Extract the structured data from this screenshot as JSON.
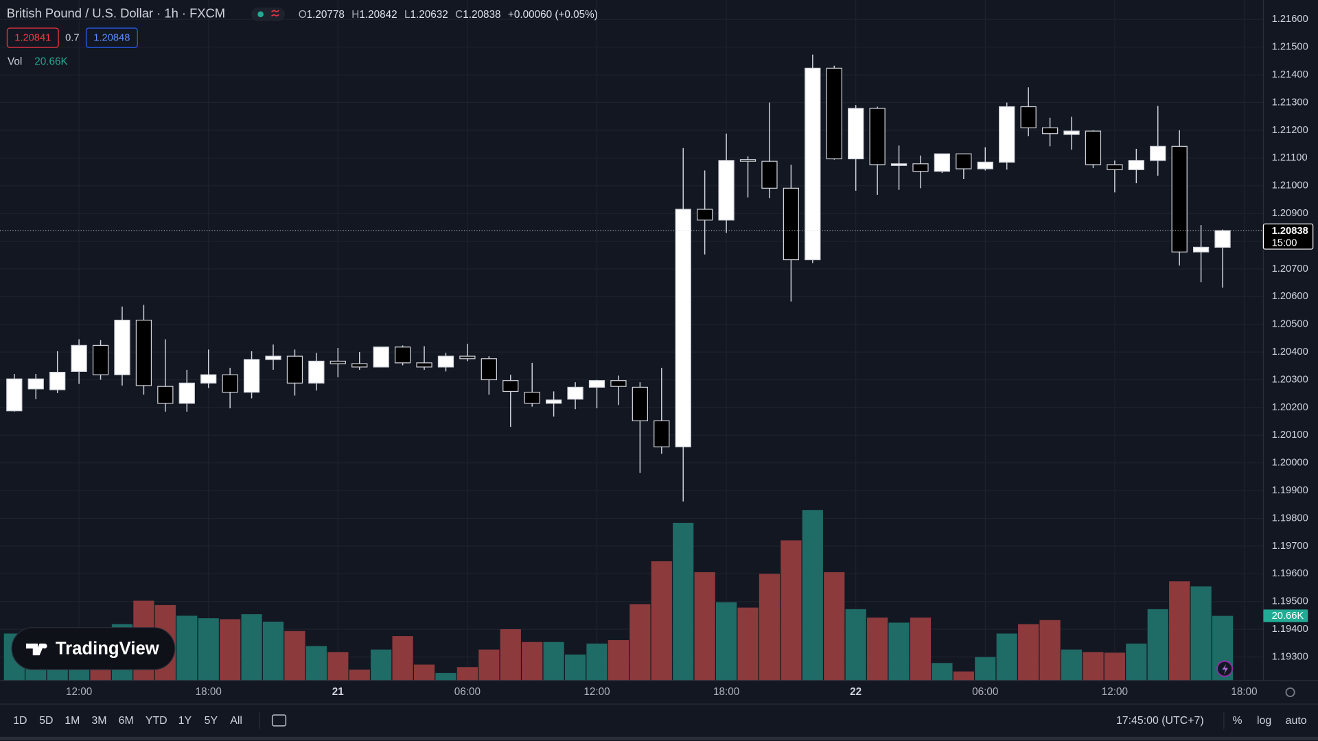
{
  "header": {
    "title": "British Pound / U.S. Dollar · 1h · FXCM",
    "ohlc_letters": [
      "O",
      "H",
      "L",
      "C"
    ],
    "change": "+0.00060 (+0.05%)",
    "sell": "1.20841",
    "spread": "0.7",
    "buy": "1.20848"
  },
  "logo": "TradingView",
  "toolbar": {
    "ranges": [
      "1D",
      "5D",
      "1M",
      "3M",
      "6M",
      "YTD",
      "1Y",
      "5Y",
      "All"
    ],
    "time": "17:45:00 (UTC+7)",
    "options": [
      "%",
      "log",
      "auto"
    ]
  },
  "chart_data": {
    "type": "candlestick",
    "categories": [
      null,
      null,
      null,
      "12:00",
      null,
      null,
      null,
      null,
      null,
      "18:00",
      null,
      null,
      null,
      null,
      null,
      "21",
      null,
      null,
      null,
      null,
      null,
      "06:00",
      null,
      null,
      null,
      null,
      null,
      "12:00",
      null,
      null,
      null,
      null,
      null,
      "18:00",
      null,
      null,
      null,
      null,
      null,
      "22",
      null,
      null,
      null,
      null,
      null,
      "06:00",
      null,
      null,
      null,
      null,
      null,
      "12:00",
      null,
      null,
      null,
      null,
      null,
      "18:00"
    ],
    "open": [
      1.20188,
      1.20267,
      1.20264,
      1.2033,
      1.20424,
      1.20318,
      1.20515,
      1.20276,
      1.20215,
      1.20288,
      1.20318,
      1.20255,
      1.20373,
      1.20385,
      1.20288,
      1.20367,
      1.20358,
      1.20346,
      1.20418,
      1.20361,
      1.20346,
      1.20385,
      1.20376,
      1.20297,
      1.20255,
      1.20215,
      1.2023,
      1.20273,
      1.20297,
      1.20273,
      1.20152,
      1.20058,
      1.20915,
      1.20876,
      1.21094,
      1.21088,
      1.20991,
      1.20733,
      1.21424,
      1.21097,
      1.21279,
      1.21073,
      1.21079,
      1.21052,
      1.21115,
      1.21061,
      1.21085,
      1.21285,
      1.21209,
      1.21185,
      1.21197,
      1.21076,
      1.21058,
      1.21091,
      1.21142,
      1.20761,
      1.20778,
      null
    ],
    "high": [
      1.20321,
      1.20321,
      1.20403,
      1.20446,
      1.20443,
      1.20564,
      1.2057,
      1.20446,
      1.20336,
      1.20409,
      1.20343,
      1.20403,
      1.20427,
      1.20409,
      1.20397,
      1.20415,
      1.204,
      1.20418,
      1.20424,
      1.20421,
      1.20397,
      1.2043,
      1.20385,
      1.20318,
      1.20361,
      1.20258,
      1.20291,
      1.203,
      1.20315,
      1.20291,
      1.20343,
      1.21136,
      1.21055,
      1.21188,
      1.21106,
      1.213,
      1.21076,
      1.21473,
      1.21433,
      1.21291,
      1.21285,
      1.21145,
      1.21109,
      1.21115,
      1.21115,
      1.21139,
      1.213,
      1.21355,
      1.21245,
      1.21249,
      1.212,
      1.21091,
      1.21133,
      1.21288,
      1.212,
      1.20858,
      1.20842,
      null
    ],
    "low": [
      1.20185,
      1.2023,
      1.20252,
      1.20285,
      1.203,
      1.20279,
      1.20246,
      1.20185,
      1.20185,
      1.2027,
      1.20197,
      1.20233,
      1.20336,
      1.20243,
      1.20261,
      1.20309,
      1.20336,
      1.20346,
      1.20352,
      1.20336,
      1.2033,
      1.20367,
      1.20246,
      1.2013,
      1.20203,
      1.20167,
      1.20194,
      1.20197,
      1.20209,
      1.19964,
      1.20033,
      1.19861,
      1.20752,
      1.2083,
      1.20958,
      1.20955,
      1.20582,
      1.20721,
      1.21094,
      1.20982,
      1.20967,
      1.20985,
      1.20991,
      1.21046,
      1.21024,
      1.21055,
      1.21058,
      1.21179,
      1.21142,
      1.2113,
      1.21064,
      1.20976,
      1.21009,
      1.21036,
      1.20712,
      1.20652,
      1.20632,
      null
    ],
    "close": [
      1.20303,
      1.20303,
      1.20327,
      1.20424,
      1.20318,
      1.20515,
      1.20279,
      1.20215,
      1.20288,
      1.20318,
      1.20255,
      1.20373,
      1.20385,
      1.20288,
      1.20367,
      1.20358,
      1.20346,
      1.20418,
      1.20361,
      1.20346,
      1.20385,
      1.20376,
      1.203,
      1.20258,
      1.20215,
      1.20227,
      1.20273,
      1.20297,
      1.20276,
      1.20152,
      1.20058,
      1.20915,
      1.20876,
      1.21091,
      1.21088,
      1.20991,
      1.20733,
      1.21424,
      1.21097,
      1.21279,
      1.21076,
      1.21079,
      1.21052,
      1.21115,
      1.21061,
      1.21085,
      1.21285,
      1.21209,
      1.21188,
      1.21197,
      1.21076,
      1.21058,
      1.21091,
      1.21142,
      1.20761,
      1.20778,
      1.20838,
      null
    ],
    "up_color": "#ffffff",
    "down_color": "#000000",
    "wick_color": "#d1d4dc",
    "countdown": "15:00",
    "volume": {
      "name": "Vol",
      "last_label": "20.66K",
      "up_color": "#1f6b66",
      "down_color": "#8c3a3c",
      "label_color": "#22ab94",
      "values": [
        15.0,
        14.0,
        13.0,
        16.5,
        14.5,
        18.0,
        25.5,
        24.1,
        20.7,
        19.9,
        19.6,
        21.2,
        18.8,
        15.8,
        11.0,
        9.1,
        3.5,
        9.9,
        14.2,
        5.1,
        2.4,
        4.3,
        9.9,
        16.4,
        12.3,
        12.3,
        8.3,
        11.8,
        12.9,
        24.4,
        38.1,
        50.4,
        34.6,
        25.0,
        23.3,
        34.1,
        44.8,
        54.5,
        34.6,
        22.8,
        20.1,
        18.5,
        20.1,
        5.6,
        2.9,
        7.5,
        15.0,
        18.0,
        19.3,
        9.9,
        9.1,
        8.9,
        11.8,
        22.8,
        31.7,
        30.1,
        20.66,
        null
      ]
    },
    "ylim": [
      1.19215,
      1.2167
    ],
    "yticks": [
      {
        "value": 1.216,
        "label": "1.21600"
      },
      {
        "value": 1.215,
        "label": "1.21500"
      },
      {
        "value": 1.214,
        "label": "1.21400"
      },
      {
        "value": 1.213,
        "label": "1.21300"
      },
      {
        "value": 1.212,
        "label": "1.21200"
      },
      {
        "value": 1.211,
        "label": "1.21100"
      },
      {
        "value": 1.21,
        "label": "1.21000"
      },
      {
        "value": 1.209,
        "label": "1.20900"
      },
      {
        "value": 1.208,
        "label": "1.20800"
      },
      {
        "value": 1.207,
        "label": "1.20700"
      },
      {
        "value": 1.206,
        "label": "1.20600"
      },
      {
        "value": 1.205,
        "label": "1.20500"
      },
      {
        "value": 1.204,
        "label": "1.20400"
      },
      {
        "value": 1.203,
        "label": "1.20300"
      },
      {
        "value": 1.202,
        "label": "1.20200"
      },
      {
        "value": 1.201,
        "label": "1.20100"
      },
      {
        "value": 1.2,
        "label": "1.20000"
      },
      {
        "value": 1.199,
        "label": "1.19900"
      },
      {
        "value": 1.198,
        "label": "1.19800"
      },
      {
        "value": 1.197,
        "label": "1.19700"
      },
      {
        "value": 1.196,
        "label": "1.19600"
      },
      {
        "value": 1.195,
        "label": "1.19500"
      },
      {
        "value": 1.194,
        "label": "1.19400"
      },
      {
        "value": 1.193,
        "label": "1.19300"
      }
    ],
    "grid": true
  }
}
